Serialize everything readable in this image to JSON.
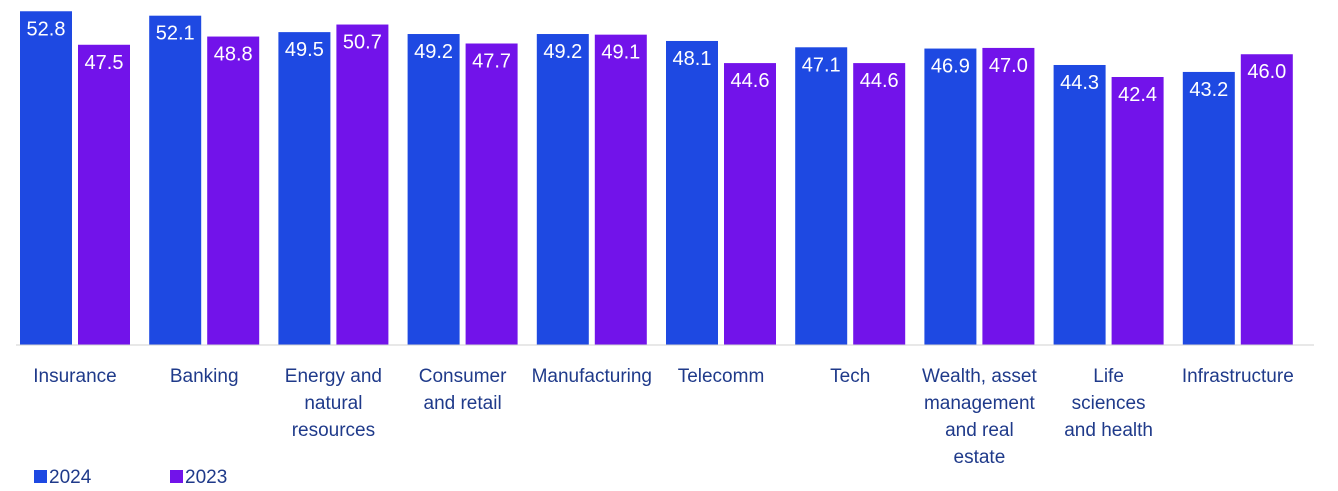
{
  "chart_data": {
    "type": "bar",
    "title": "",
    "xlabel": "",
    "ylabel": "",
    "ylim": [
      0,
      53
    ],
    "grid": false,
    "legend_position": "bottom-left",
    "categories": [
      [
        "Insurance"
      ],
      [
        "Banking"
      ],
      [
        "Energy and",
        "natural",
        "resources"
      ],
      [
        "Consumer",
        "and retail"
      ],
      [
        "Manufacturing"
      ],
      [
        "Telecomm"
      ],
      [
        "Tech"
      ],
      [
        "Wealth, asset",
        "management",
        "and real",
        "estate"
      ],
      [
        "Life",
        "sciences",
        "and health"
      ],
      [
        "Infrastructure"
      ]
    ],
    "series": [
      {
        "name": "2024",
        "color": "#1e49e2",
        "values": [
          52.8,
          52.1,
          49.5,
          49.2,
          49.2,
          48.1,
          47.1,
          46.9,
          44.3,
          43.2
        ],
        "labels": [
          "52.8",
          "52.1",
          "49.5",
          "49.2",
          "49.2",
          "48.1",
          "47.1",
          "46.9",
          "44.3",
          "43.2"
        ]
      },
      {
        "name": "2023",
        "color": "#7213ea",
        "values": [
          47.5,
          48.8,
          50.7,
          47.7,
          49.1,
          44.6,
          44.6,
          47.0,
          42.4,
          46.0
        ],
        "labels": [
          "47.5",
          "48.8",
          "50.7",
          "47.7",
          "49.1",
          "44.6",
          "44.6",
          "47.0",
          "42.4",
          "46.0"
        ]
      }
    ]
  }
}
